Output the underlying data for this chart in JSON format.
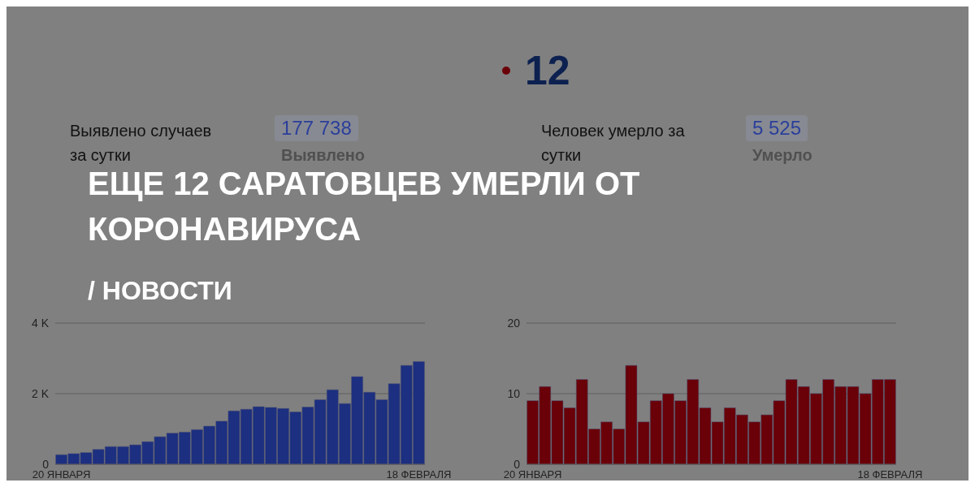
{
  "chart_data": [
    {
      "type": "bar",
      "subtitle": "Выявлено случаев за сутки",
      "annotations": [
        "177 738",
        "Выявлено"
      ],
      "categories": [
        "20 ЯНВАРЯ",
        null,
        null,
        null,
        null,
        null,
        null,
        null,
        null,
        null,
        null,
        null,
        null,
        null,
        null,
        null,
        null,
        null,
        null,
        null,
        null,
        null,
        null,
        null,
        null,
        null,
        null,
        null,
        null,
        "18 ФЕВРАЛЯ"
      ],
      "series": [
        {
          "color": "#1c2f80",
          "values": [
            270,
            300,
            330,
            420,
            500,
            500,
            550,
            640,
            780,
            880,
            910,
            980,
            1080,
            1220,
            1510,
            1560,
            1630,
            1610,
            1580,
            1480,
            1620,
            1830,
            2110,
            1720,
            2480,
            2040,
            1830,
            2280,
            2800,
            2910
          ]
        }
      ],
      "ylim": [
        0,
        4000
      ],
      "yticks": [
        {
          "value": 0,
          "label": "0"
        },
        {
          "value": 2000,
          "label": "2 K"
        },
        {
          "value": 4000,
          "label": "4 K"
        }
      ],
      "grid": "y"
    },
    {
      "type": "bar",
      "title": "12",
      "subtitle": "Человек умерло за сутки",
      "annotations": [
        "5 525",
        "Умерло"
      ],
      "categories": [
        "20 ЯНВАРЯ",
        null,
        null,
        null,
        null,
        null,
        null,
        null,
        null,
        null,
        null,
        null,
        null,
        null,
        null,
        null,
        null,
        null,
        null,
        null,
        null,
        null,
        null,
        null,
        null,
        null,
        null,
        null,
        null,
        "18 ФЕВРАЛЯ"
      ],
      "series": [
        {
          "color": "#6a0008",
          "values": [
            9,
            11,
            9,
            8,
            12,
            5,
            6,
            5,
            14,
            6,
            9,
            10,
            9,
            12,
            8,
            6,
            8,
            7,
            6,
            7,
            9,
            12,
            11,
            10,
            12,
            11,
            11,
            10,
            12,
            12
          ]
        }
      ],
      "ylim": [
        0,
        20
      ],
      "yticks": [
        0,
        10,
        20
      ],
      "grid": "y"
    },
    {
      "type": "other",
      "title": "ЕЩЕ 12 САРАТОВЦЕВ УМЕРЛИ ОТ КОРОНАВИРУСА",
      "annotations": [
        "/ НОВОСТИ"
      ]
    }
  ]
}
